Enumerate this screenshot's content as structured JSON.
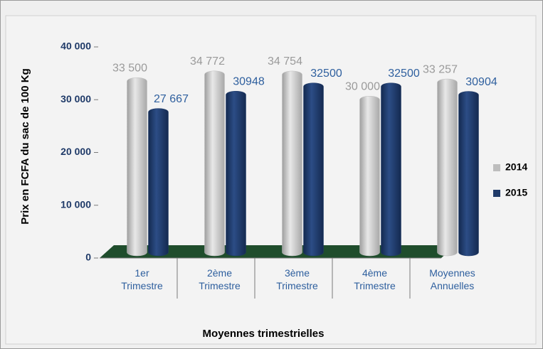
{
  "chart_data": {
    "type": "bar",
    "y_label": "Prix en FCFA du sac de 100 Kg",
    "x_label": "Moyennes trimestrielles",
    "categories": [
      "1er Trimestre",
      "2ème Trimestre",
      "3ème Trimestre",
      "4ème Trimestre",
      "Moyennes Annuelles"
    ],
    "series": [
      {
        "name": "2014",
        "color": "#bdbdbd",
        "values": [
          33500,
          34772,
          34754,
          30000,
          33257
        ],
        "value_labels": [
          "33 500",
          "34 772",
          "34 754",
          "30 000",
          "33 257"
        ]
      },
      {
        "name": "2015",
        "color": "#1f3a68",
        "values": [
          27667,
          30948,
          32500,
          32500,
          30904
        ],
        "value_labels": [
          "27 667",
          "30948",
          "32500",
          "32500",
          "30904"
        ]
      }
    ],
    "ylim": [
      0,
      40000
    ],
    "yticks": [
      0,
      {
        "value": 10000,
        "label": "10 000"
      },
      {
        "value": 20000,
        "label": "20 000"
      },
      {
        "value": 30000,
        "label": "30 000"
      },
      {
        "value": 40000,
        "label": "40 000"
      }
    ],
    "grid": false,
    "legend": "right"
  }
}
